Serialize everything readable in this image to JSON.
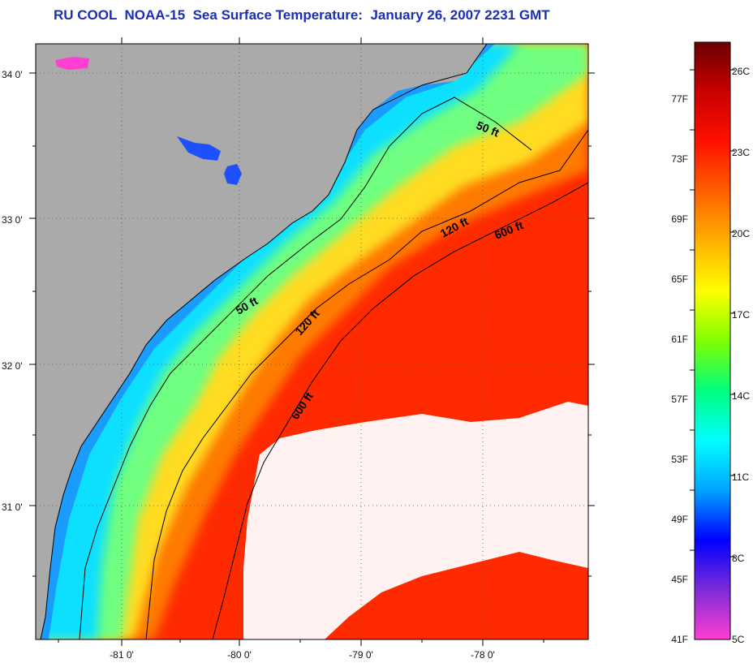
{
  "title": "RU COOL  NOAA-15  Sea Surface Temperature:  January 26, 2007 2231 GMT",
  "map": {
    "lat_labels": [
      "34 0'",
      "33 0'",
      "32 0'",
      "31 0'"
    ],
    "lon_labels": [
      "-81 0'",
      "-80 0'",
      "-79 0'",
      "-78 0'"
    ],
    "contour_labels": [
      "50 ft",
      "120 ft",
      "600 ft",
      "50 ft",
      "120 ft",
      "600 ft"
    ],
    "colors": {
      "land": "#aaaaaa",
      "cloud": "#ffffff",
      "coastline": "#000000"
    }
  },
  "colorbar": {
    "fahrenheit_labels": [
      "77F",
      "73F",
      "69F",
      "65F",
      "61F",
      "57F",
      "53F",
      "49F",
      "45F",
      "41F"
    ],
    "celsius_labels": [
      "26C",
      "23C",
      "20C",
      "17C",
      "14C",
      "11C",
      "8C",
      "5C"
    ],
    "colors": [
      "#ff3fd2",
      "#7d2bd8",
      "#0000ff",
      "#00a4ff",
      "#00ffff",
      "#00ff80",
      "#80ff00",
      "#ffff00",
      "#ffb000",
      "#ff6000",
      "#ff1000",
      "#c80000",
      "#6b0000"
    ]
  }
}
